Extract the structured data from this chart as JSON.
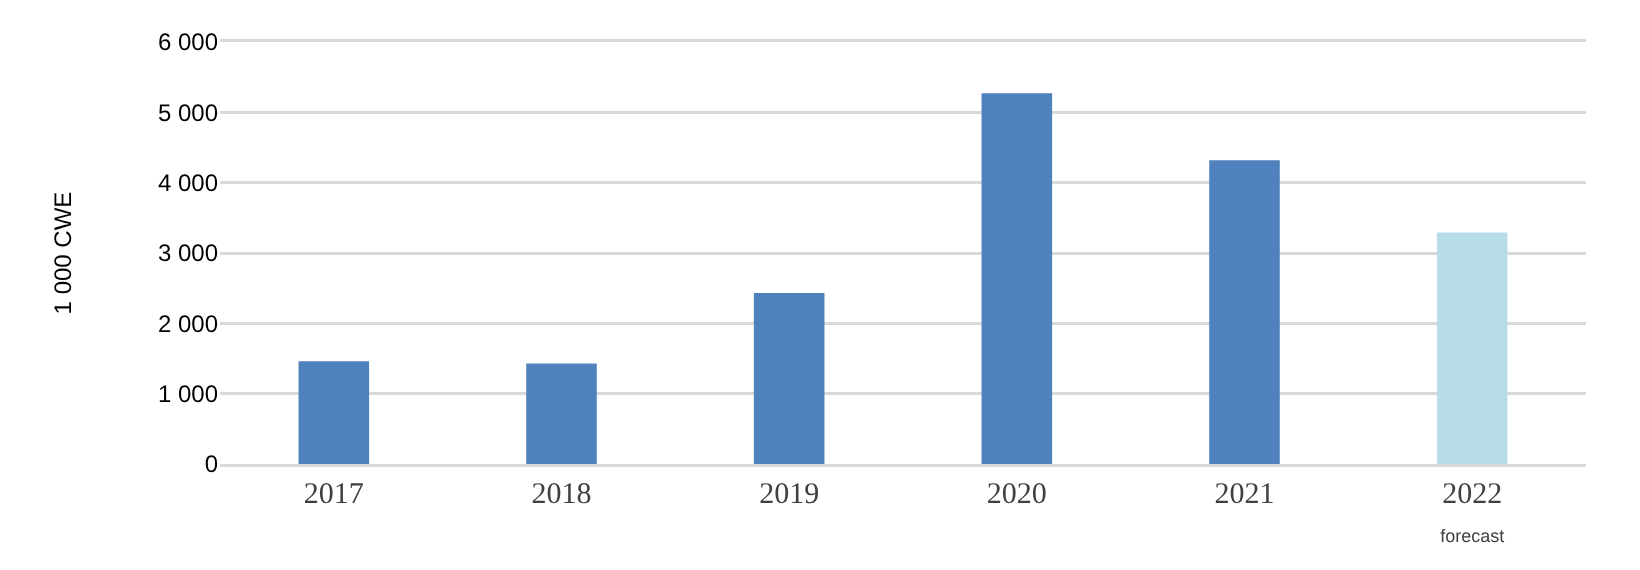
{
  "chart_data": {
    "type": "bar",
    "ylabel": "1 000 CWE",
    "categories": [
      "2017",
      "2018",
      "2019",
      "2020",
      "2021",
      "2022\nforecast"
    ],
    "values": [
      1460,
      1430,
      2430,
      5270,
      4320,
      3290
    ],
    "colors": [
      "#4f81bd",
      "#4f81bd",
      "#4f81bd",
      "#4f81bd",
      "#4f81bd",
      "#b7dde8"
    ],
    "ylim": [
      0,
      6000
    ],
    "yticks": [
      {
        "value": 0,
        "label": "0"
      },
      {
        "value": 1000,
        "label": "1 000"
      },
      {
        "value": 2000,
        "label": "2 000"
      },
      {
        "value": 3000,
        "label": "3 000"
      },
      {
        "value": 4000,
        "label": "4 000"
      },
      {
        "value": 5000,
        "label": "5 000"
      },
      {
        "value": 6000,
        "label": "6 000"
      }
    ],
    "grid": "y"
  }
}
